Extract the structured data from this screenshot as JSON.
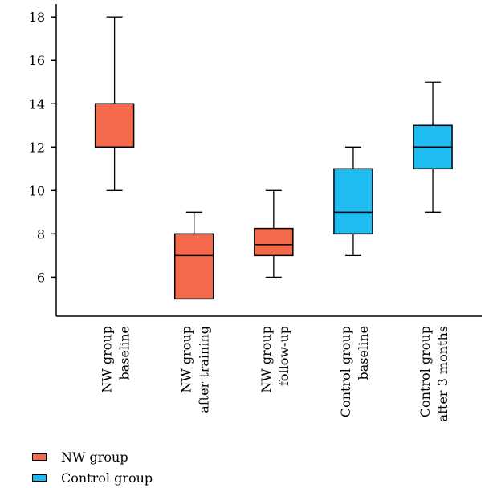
{
  "chart_data": {
    "type": "boxplot",
    "title": "",
    "xlabel": "",
    "ylabel": "",
    "ylim": [
      4.2,
      18.6
    ],
    "yticks": [
      6,
      8,
      10,
      12,
      14,
      16,
      18
    ],
    "grid": false,
    "legend_position": "bottom-left",
    "categories": [
      [
        "NW group",
        "baseline"
      ],
      [
        "NW group",
        "after training"
      ],
      [
        "NW group",
        "follow-up"
      ],
      [
        "Control group",
        "baseline"
      ],
      [
        "Control group",
        "after 3 months"
      ]
    ],
    "boxes": [
      {
        "group": "NW group",
        "min": 10,
        "q1": 12,
        "median": 12,
        "q3": 14,
        "max": 18
      },
      {
        "group": "NW group",
        "min": 5,
        "q1": 5,
        "median": 7,
        "q3": 8,
        "max": 9
      },
      {
        "group": "NW group",
        "min": 6,
        "q1": 7,
        "median": 7.5,
        "q3": 8.25,
        "max": 10
      },
      {
        "group": "Control group",
        "min": 7,
        "q1": 8,
        "median": 9,
        "q3": 11,
        "max": 12
      },
      {
        "group": "Control group",
        "min": 9,
        "q1": 11,
        "median": 12,
        "q3": 13,
        "max": 15
      }
    ],
    "legend": [
      {
        "name": "NW group",
        "color": "#f4694b"
      },
      {
        "name": "Control group",
        "color": "#1ebcf0"
      }
    ]
  }
}
